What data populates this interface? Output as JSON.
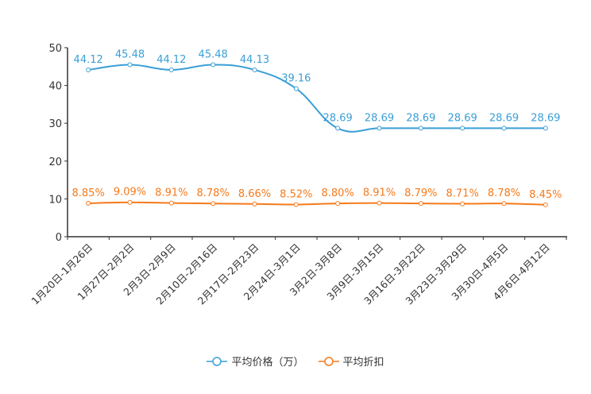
{
  "chart_data": {
    "type": "line",
    "categories": [
      "1月20日-1月26日",
      "1月27日-2月2日",
      "2月3日-2月9日",
      "2月10日-2月16日",
      "2月17日-2月23日",
      "2月24日-3月1日",
      "3月2日-3月8日",
      "3月9日-3月15日",
      "3月16日-3月22日",
      "3月23日-3月29日",
      "3月30日-4月5日",
      "4月6日-4月12日"
    ],
    "series": [
      {
        "name": "平均价格（万）",
        "color": "#3a9fd6",
        "values": [
          44.12,
          45.48,
          44.12,
          45.48,
          44.13,
          39.16,
          28.69,
          28.69,
          28.69,
          28.69,
          28.69,
          28.69
        ],
        "labels": [
          "44.12",
          "45.48",
          "44.12",
          "45.48",
          "44.13",
          "39.16",
          "28.69",
          "28.69",
          "28.69",
          "28.69",
          "28.69",
          "28.69"
        ]
      },
      {
        "name": "平均折扣",
        "color": "#f57a1c",
        "values": [
          8.85,
          9.09,
          8.91,
          8.78,
          8.66,
          8.52,
          8.8,
          8.91,
          8.79,
          8.71,
          8.78,
          8.45
        ],
        "labels": [
          "8.85%",
          "9.09%",
          "8.91%",
          "8.78%",
          "8.66%",
          "8.52%",
          "8.80%",
          "8.91%",
          "8.79%",
          "8.71%",
          "8.78%",
          "8.45%"
        ]
      }
    ],
    "yticks": [
      "0",
      "10",
      "20",
      "30",
      "40",
      "50"
    ],
    "ylim": [
      0,
      50
    ],
    "legend_position": "bottom",
    "grid": false
  }
}
